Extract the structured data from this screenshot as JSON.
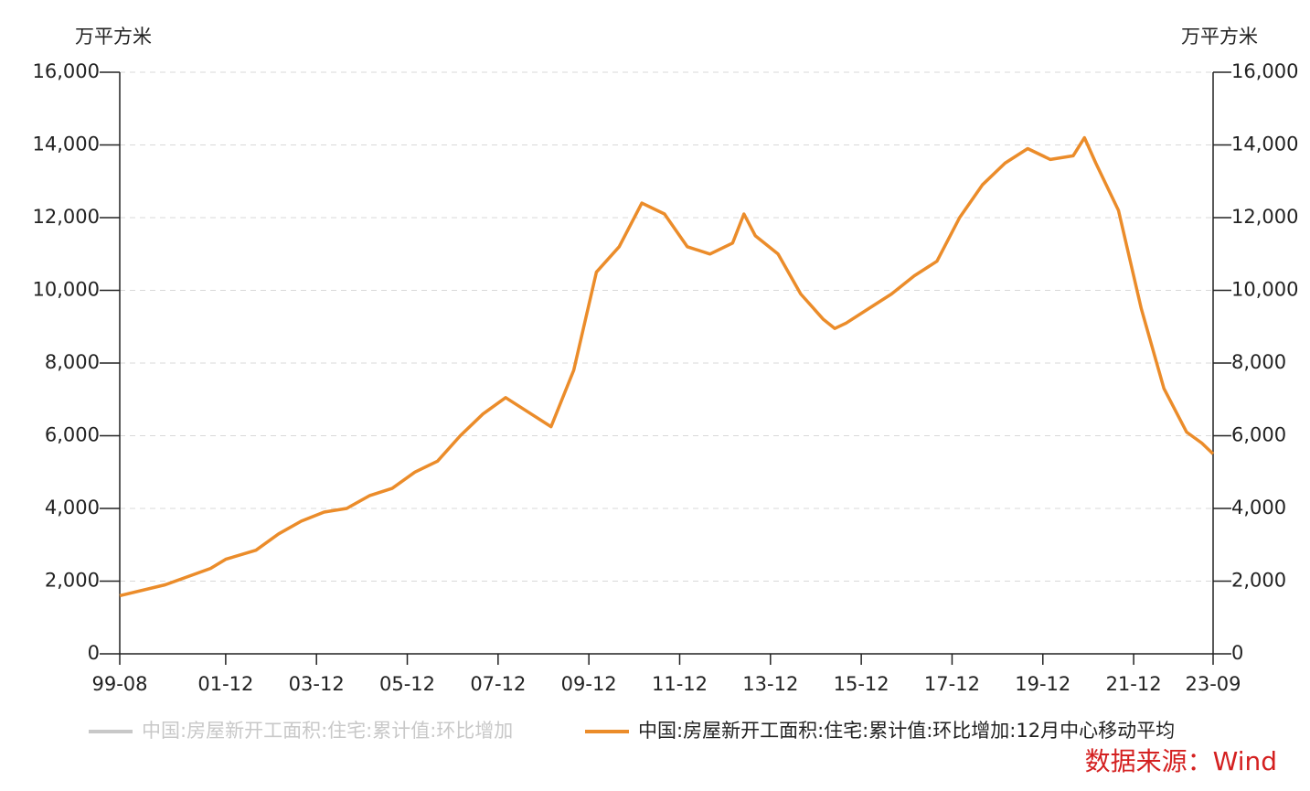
{
  "chart_data": {
    "type": "line",
    "y_label": "万平方米",
    "y2_label": "万平方米",
    "source": "数据来源：Wind",
    "x": [
      "99-08",
      "00-08",
      "01-08",
      "01-12",
      "02-08",
      "03-02",
      "03-08",
      "04-02",
      "04-08",
      "05-02",
      "05-08",
      "06-02",
      "06-08",
      "07-02",
      "07-08",
      "08-02",
      "08-08",
      "09-02",
      "09-08",
      "10-02",
      "10-08",
      "11-02",
      "11-08",
      "12-02",
      "12-08",
      "13-02",
      "13-05",
      "13-08",
      "14-02",
      "14-08",
      "15-02",
      "15-05",
      "15-08",
      "16-02",
      "16-08",
      "17-02",
      "17-08",
      "18-02",
      "18-08",
      "19-02",
      "19-08",
      "20-02",
      "20-08",
      "20-11",
      "21-02",
      "21-08",
      "22-02",
      "22-08",
      "23-02",
      "23-06",
      "23-09"
    ],
    "series": [
      {
        "name": "中国:房屋新开工面积:住宅:累计值:环比增加",
        "color": "#c8c8c8",
        "values": [
          null,
          null,
          null,
          null,
          null,
          null,
          null,
          null,
          null,
          null,
          null,
          null,
          null,
          null,
          null,
          null,
          null,
          null,
          null,
          null,
          null,
          null,
          null,
          null,
          null,
          null,
          null,
          null,
          null,
          null,
          null,
          null,
          null,
          null,
          null,
          null,
          null,
          null,
          null,
          null,
          null,
          null,
          null,
          null,
          null,
          null,
          null,
          null,
          null,
          null,
          null
        ]
      },
      {
        "name": "中国:房屋新开工面积:住宅:累计值:环比增加:12月中心移动平均",
        "color": "#eb8c2a",
        "values": [
          1600,
          1900,
          2350,
          2600,
          2850,
          3300,
          3650,
          3900,
          4000,
          4350,
          4550,
          5000,
          5300,
          6000,
          6600,
          7050,
          6650,
          6250,
          7800,
          10500,
          11200,
          12400,
          12100,
          11200,
          11000,
          11300,
          12100,
          11500,
          11000,
          9900,
          9200,
          8950,
          9100,
          9500,
          9900,
          10400,
          10800,
          12000,
          12900,
          13500,
          13900,
          13600,
          13700,
          14200,
          13500,
          12200,
          9500,
          7300,
          6100,
          5800,
          5500
        ]
      }
    ],
    "xticks": [
      "99-08",
      "01-12",
      "03-12",
      "05-12",
      "07-12",
      "09-12",
      "11-12",
      "13-12",
      "15-12",
      "17-12",
      "19-12",
      "21-12",
      "23-09"
    ],
    "ylim": [
      0,
      16000
    ],
    "yticks": [
      0,
      {
        "value": 2000,
        "label": "2,000"
      },
      {
        "value": 4000,
        "label": "4,000"
      },
      {
        "value": 6000,
        "label": "6,000"
      },
      {
        "value": 8000,
        "label": "8,000"
      },
      {
        "value": 10000,
        "label": "10,000"
      },
      {
        "value": 12000,
        "label": "12,000"
      },
      {
        "value": 14000,
        "label": "14,000"
      },
      {
        "value": 16000,
        "label": "16,000"
      }
    ],
    "y2lim": [
      0,
      16000
    ],
    "y2ticks": [
      0,
      {
        "value": 2000,
        "label": "2,000"
      },
      {
        "value": 4000,
        "label": "4,000"
      },
      {
        "value": 6000,
        "label": "6,000"
      },
      {
        "value": 8000,
        "label": "8,000"
      },
      {
        "value": 10000,
        "label": "10,000"
      },
      {
        "value": 12000,
        "label": "12,000"
      },
      {
        "value": 14000,
        "label": "14,000"
      },
      {
        "value": 16000,
        "label": "16,000"
      }
    ],
    "grid": true
  }
}
